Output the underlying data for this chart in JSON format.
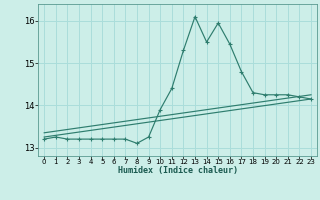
{
  "xlabel": "Humidex (Indice chaleur)",
  "bg_color": "#cceee8",
  "grid_color": "#aaddda",
  "line_color": "#2e7d6e",
  "xlim": [
    -0.5,
    23.5
  ],
  "ylim": [
    12.8,
    16.4
  ],
  "yticks": [
    13,
    14,
    15,
    16
  ],
  "xticks": [
    0,
    1,
    2,
    3,
    4,
    5,
    6,
    7,
    8,
    9,
    10,
    11,
    12,
    13,
    14,
    15,
    16,
    17,
    18,
    19,
    20,
    21,
    22,
    23
  ],
  "main_line_x": [
    0,
    1,
    2,
    3,
    4,
    5,
    6,
    7,
    8,
    9,
    10,
    11,
    12,
    13,
    14,
    15,
    16,
    17,
    18,
    19,
    20,
    21,
    22,
    23
  ],
  "main_line_y": [
    13.2,
    13.25,
    13.2,
    13.2,
    13.2,
    13.2,
    13.2,
    13.2,
    13.1,
    13.25,
    13.9,
    14.4,
    15.3,
    16.1,
    15.5,
    15.95,
    15.45,
    14.8,
    14.3,
    14.25,
    14.25,
    14.25,
    14.2,
    14.15
  ],
  "line2_x": [
    0,
    23
  ],
  "line2_y": [
    13.25,
    14.15
  ],
  "line3_x": [
    0,
    23
  ],
  "line3_y": [
    13.35,
    14.25
  ]
}
